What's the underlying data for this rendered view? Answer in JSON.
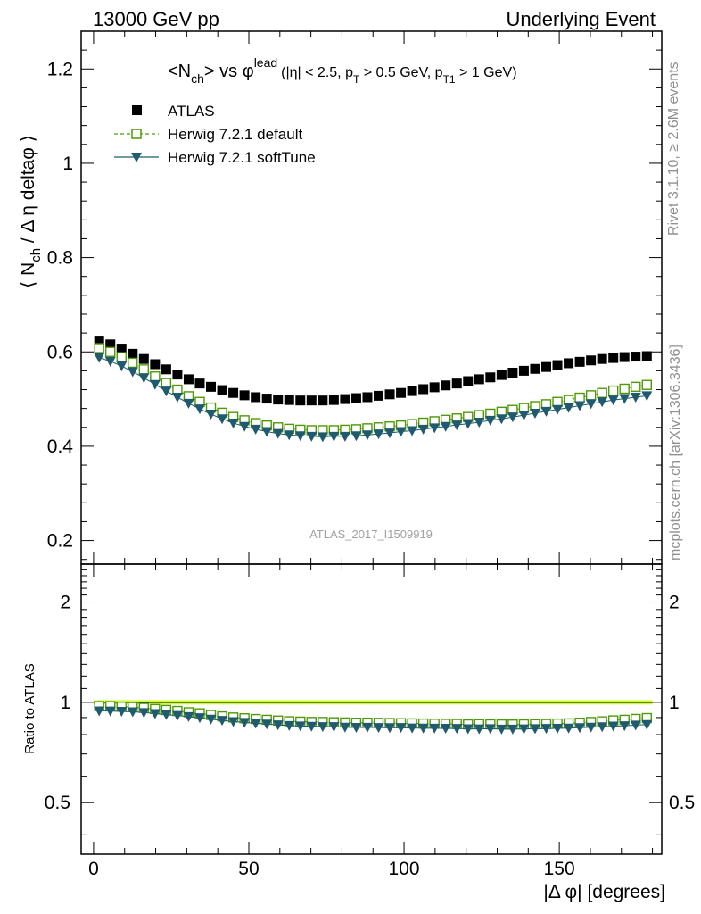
{
  "header": {
    "left": "13000 GeV pp",
    "right": "Underlying Event"
  },
  "side_labels": {
    "rivet": "Rivet 3.1.10, ≥ 2.6M events",
    "mcplots": "mcplots.cern.ch [arXiv:1306.3436]"
  },
  "watermark": "ATLAS_2017_I1509919",
  "colors": {
    "atlas": "#000000",
    "herwig_default": "#4e9a06",
    "herwig_softtune": "#1f5a6e",
    "band": "#ccff33"
  },
  "chart_data": [
    {
      "type": "scatter",
      "title": "<N_ch> vs φ^lead (|η| < 2.5, p_T > 0.5 GeV, p_T1 > 1 GeV)",
      "title_parts": {
        "main": "<N",
        "sub1": "ch",
        "mid": "> vs φ",
        "sup": "lead",
        "cuts": "(|η| < 2.5, p",
        "sub2": "T",
        "cuts2": " > 0.5 GeV, p",
        "sub3": "T1",
        "cuts3": " > 1 GeV)"
      },
      "ylabel": "⟨ N_ch / Δ η deltaφ ⟩",
      "ylabel_parts": {
        "a": "⟨ N",
        "sub": "ch",
        "b": " / Δ η deltaφ ⟩"
      },
      "xlim": [
        -4,
        183
      ],
      "ylim": [
        0.15,
        1.28
      ],
      "yticks": [
        0.2,
        0.4,
        0.6,
        0.8,
        1,
        1.2
      ],
      "ytick_labels": [
        "0.2",
        "0.4",
        "0.6",
        "0.8",
        "1",
        "1.2"
      ],
      "legend_position": "top-left",
      "x": [
        1.8,
        5.4,
        9,
        12.6,
        16.2,
        19.8,
        23.4,
        27,
        30.6,
        34.2,
        37.8,
        41.4,
        45,
        48.6,
        52.2,
        55.8,
        59.4,
        63,
        66.6,
        70.2,
        73.8,
        77.4,
        81,
        84.6,
        88.2,
        91.8,
        95.4,
        99,
        102.6,
        106.2,
        109.8,
        113.4,
        117,
        120.6,
        124.2,
        127.8,
        131.4,
        135,
        138.6,
        142.2,
        145.8,
        149.4,
        153,
        156.6,
        160.2,
        163.8,
        167.4,
        171,
        174.6,
        178.2
      ],
      "series": [
        {
          "name": "ATLAS",
          "marker": "filled-square",
          "values": [
            0.624,
            0.616,
            0.607,
            0.596,
            0.585,
            0.574,
            0.563,
            0.552,
            0.542,
            0.533,
            0.526,
            0.519,
            0.513,
            0.508,
            0.504,
            0.501,
            0.499,
            0.498,
            0.497,
            0.497,
            0.497,
            0.498,
            0.5,
            0.502,
            0.504,
            0.507,
            0.51,
            0.513,
            0.517,
            0.521,
            0.525,
            0.529,
            0.533,
            0.538,
            0.542,
            0.546,
            0.551,
            0.556,
            0.56,
            0.564,
            0.568,
            0.572,
            0.576,
            0.579,
            0.582,
            0.585,
            0.587,
            0.589,
            0.59,
            0.591
          ]
        },
        {
          "name": "Herwig 7.2.1 default",
          "marker": "open-square-dashed",
          "values": [
            0.608,
            0.6,
            0.589,
            0.577,
            0.563,
            0.548,
            0.534,
            0.52,
            0.506,
            0.494,
            0.482,
            0.471,
            0.462,
            0.455,
            0.449,
            0.444,
            0.44,
            0.437,
            0.435,
            0.434,
            0.434,
            0.434,
            0.435,
            0.436,
            0.438,
            0.44,
            0.442,
            0.444,
            0.447,
            0.45,
            0.453,
            0.456,
            0.459,
            0.462,
            0.466,
            0.469,
            0.473,
            0.477,
            0.481,
            0.485,
            0.489,
            0.494,
            0.498,
            0.503,
            0.508,
            0.513,
            0.518,
            0.522,
            0.526,
            0.53
          ]
        },
        {
          "name": "Herwig 7.2.1 softTune",
          "marker": "filled-triangle-down",
          "values": [
            0.588,
            0.58,
            0.57,
            0.558,
            0.545,
            0.531,
            0.517,
            0.504,
            0.491,
            0.479,
            0.468,
            0.458,
            0.449,
            0.442,
            0.436,
            0.431,
            0.427,
            0.424,
            0.422,
            0.421,
            0.42,
            0.421,
            0.421,
            0.422,
            0.424,
            0.426,
            0.428,
            0.431,
            0.433,
            0.436,
            0.439,
            0.442,
            0.445,
            0.448,
            0.451,
            0.455,
            0.458,
            0.462,
            0.466,
            0.47,
            0.474,
            0.478,
            0.482,
            0.486,
            0.49,
            0.494,
            0.498,
            0.501,
            0.504,
            0.507
          ]
        }
      ]
    },
    {
      "type": "scatter",
      "ylabel": "Ratio to ATLAS",
      "xlabel": "|Δ φ| [degrees]",
      "xlim": [
        -4,
        183
      ],
      "xticks": [
        0,
        50,
        100,
        150
      ],
      "xtick_labels": [
        "0",
        "50",
        "100",
        "150"
      ],
      "ylim": [
        0.35,
        2.6
      ],
      "yscale": "log",
      "yticks": [
        0.5,
        1,
        2
      ],
      "ytick_labels": [
        "0.5",
        "1",
        "2"
      ],
      "reference_line": 1,
      "series_from_top_panel": true
    }
  ]
}
